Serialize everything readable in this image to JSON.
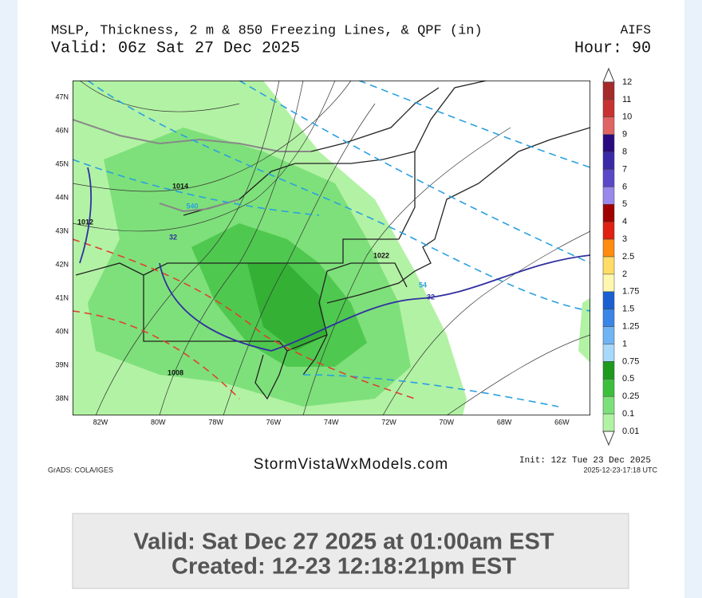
{
  "header": {
    "title": "MSLP, Thickness, 2 m & 850 Freezing Lines, & QPF (in)",
    "valid": "Valid: 06z Sat 27 Dec 2025",
    "model": "AIFS",
    "hour": "Hour: 90"
  },
  "map": {
    "lat_labels": [
      "47N",
      "46N",
      "45N",
      "44N",
      "43N",
      "42N",
      "41N",
      "40N",
      "39N",
      "38N"
    ],
    "lon_labels": [
      "82W",
      "80W",
      "78W",
      "76W",
      "74W",
      "72W",
      "70W",
      "68W",
      "66W"
    ],
    "contour_labels": [
      "1014",
      "1012",
      "540",
      "32",
      "1022",
      "54",
      "32",
      "1008"
    ]
  },
  "colorbar": {
    "labels": [
      "12",
      "11",
      "10",
      "9",
      "8",
      "7",
      "6",
      "5",
      "4",
      "3",
      "2.5",
      "2",
      "1.75",
      "1.5",
      "1.25",
      "1",
      "0.75",
      "0.5",
      "0.25",
      "0.1",
      "0.01"
    ]
  },
  "footer": {
    "grads": "GrADS: COLA/IGES",
    "site": "StormVistaWxModels.com",
    "init": "Init: 12z Tue 23 Dec 2025",
    "timestamp": "2025-12-23-17:18 UTC"
  },
  "valid_box": {
    "valid": "Valid: Sat Dec 27 2025 at 01:00am EST",
    "created": "Created: 12-23 12:18:21pm EST"
  }
}
